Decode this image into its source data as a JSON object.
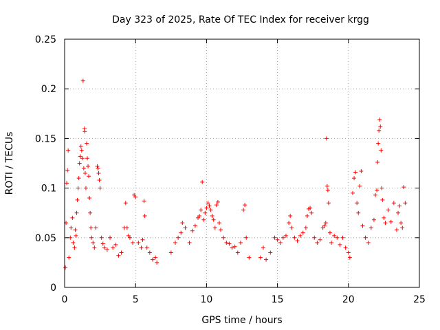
{
  "chart_data": {
    "type": "scatter",
    "title": "Day 323 of 2025, Rate Of TEC Index for receiver krgg",
    "xlabel": "GPS time / hours",
    "ylabel": "ROTI / TECUs",
    "xlim": [
      0,
      25
    ],
    "ylim": [
      0,
      0.25
    ],
    "x_ticks": [
      0,
      5,
      10,
      15,
      20,
      25
    ],
    "x_tick_labels": [
      "0",
      "5",
      "10",
      "15",
      "20",
      "25"
    ],
    "y_ticks": [
      0,
      0.05,
      0.1,
      0.15,
      0.2,
      0.25
    ],
    "y_tick_labels": [
      "0",
      "0.05",
      "0.1",
      "0.15",
      "0.2",
      "0.25"
    ],
    "grid": true,
    "marker": "+",
    "color": "#ff0000",
    "series": [
      {
        "points": [
          [
            0.05,
            0.02
          ],
          [
            0.1,
            0.065
          ],
          [
            0.15,
            0.105
          ],
          [
            0.2,
            0.118
          ],
          [
            0.25,
            0.138
          ],
          [
            0.3,
            0.03
          ],
          [
            0.4,
            0.05
          ],
          [
            0.45,
            0.06
          ],
          [
            0.55,
            0.07
          ],
          [
            0.6,
            0.045
          ],
          [
            0.7,
            0.04
          ],
          [
            0.75,
            0.058
          ],
          [
            0.8,
            0.052
          ],
          [
            0.85,
            0.075
          ],
          [
            0.9,
            0.088
          ],
          [
            0.95,
            0.1
          ],
          [
            1.0,
            0.11
          ],
          [
            1.05,
            0.125
          ],
          [
            1.1,
            0.132
          ],
          [
            1.15,
            0.142
          ],
          [
            1.2,
            0.138
          ],
          [
            1.25,
            0.13
          ],
          [
            1.3,
            0.208
          ],
          [
            1.35,
            0.12
          ],
          [
            1.4,
            0.16
          ],
          [
            1.42,
            0.157
          ],
          [
            1.45,
            0.115
          ],
          [
            1.5,
            0.1
          ],
          [
            1.55,
            0.145
          ],
          [
            1.6,
            0.13
          ],
          [
            1.65,
            0.122
          ],
          [
            1.7,
            0.112
          ],
          [
            1.75,
            0.09
          ],
          [
            1.8,
            0.075
          ],
          [
            1.85,
            0.06
          ],
          [
            1.9,
            0.05
          ],
          [
            2.0,
            0.045
          ],
          [
            2.1,
            0.04
          ],
          [
            2.2,
            0.06
          ],
          [
            2.3,
            0.122
          ],
          [
            2.35,
            0.12
          ],
          [
            2.4,
            0.115
          ],
          [
            2.45,
            0.108
          ],
          [
            2.5,
            0.1
          ],
          [
            2.6,
            0.05
          ],
          [
            2.7,
            0.044
          ],
          [
            2.8,
            0.04
          ],
          [
            3.0,
            0.038
          ],
          [
            3.2,
            0.05
          ],
          [
            3.4,
            0.04
          ],
          [
            3.6,
            0.043
          ],
          [
            3.8,
            0.032
          ],
          [
            4.0,
            0.035
          ],
          [
            4.2,
            0.06
          ],
          [
            4.3,
            0.085
          ],
          [
            4.4,
            0.06
          ],
          [
            4.5,
            0.052
          ],
          [
            4.6,
            0.05
          ],
          [
            4.8,
            0.045
          ],
          [
            4.9,
            0.093
          ],
          [
            5.0,
            0.091
          ],
          [
            5.2,
            0.045
          ],
          [
            5.4,
            0.04
          ],
          [
            5.5,
            0.048
          ],
          [
            5.6,
            0.087
          ],
          [
            5.65,
            0.072
          ],
          [
            5.8,
            0.04
          ],
          [
            6.0,
            0.035
          ],
          [
            6.2,
            0.028
          ],
          [
            6.4,
            0.03
          ],
          [
            6.5,
            0.025
          ],
          [
            7.5,
            0.035
          ],
          [
            7.8,
            0.045
          ],
          [
            8.0,
            0.05
          ],
          [
            8.2,
            0.055
          ],
          [
            8.3,
            0.065
          ],
          [
            8.5,
            0.06
          ],
          [
            8.8,
            0.045
          ],
          [
            9.0,
            0.057
          ],
          [
            9.2,
            0.062
          ],
          [
            9.4,
            0.07
          ],
          [
            9.5,
            0.072
          ],
          [
            9.6,
            0.078
          ],
          [
            9.7,
            0.106
          ],
          [
            9.8,
            0.068
          ],
          [
            9.9,
            0.075
          ],
          [
            10.0,
            0.08
          ],
          [
            10.1,
            0.085
          ],
          [
            10.2,
            0.082
          ],
          [
            10.3,
            0.078
          ],
          [
            10.4,
            0.072
          ],
          [
            10.5,
            0.068
          ],
          [
            10.6,
            0.06
          ],
          [
            10.7,
            0.083
          ],
          [
            10.8,
            0.086
          ],
          [
            10.9,
            0.065
          ],
          [
            11.0,
            0.058
          ],
          [
            11.2,
            0.05
          ],
          [
            11.4,
            0.045
          ],
          [
            11.6,
            0.044
          ],
          [
            11.8,
            0.04
          ],
          [
            12.0,
            0.041
          ],
          [
            12.2,
            0.035
          ],
          [
            12.4,
            0.045
          ],
          [
            12.6,
            0.078
          ],
          [
            12.7,
            0.083
          ],
          [
            12.8,
            0.05
          ],
          [
            13.0,
            0.03
          ],
          [
            13.8,
            0.03
          ],
          [
            14.0,
            0.04
          ],
          [
            14.2,
            0.028
          ],
          [
            14.5,
            0.035
          ],
          [
            14.8,
            0.05
          ],
          [
            15.0,
            0.048
          ],
          [
            15.2,
            0.045
          ],
          [
            15.4,
            0.05
          ],
          [
            15.6,
            0.052
          ],
          [
            15.8,
            0.065
          ],
          [
            15.9,
            0.072
          ],
          [
            16.0,
            0.06
          ],
          [
            16.2,
            0.05
          ],
          [
            16.4,
            0.047
          ],
          [
            16.6,
            0.052
          ],
          [
            16.8,
            0.055
          ],
          [
            17.0,
            0.06
          ],
          [
            17.1,
            0.072
          ],
          [
            17.2,
            0.079
          ],
          [
            17.3,
            0.08
          ],
          [
            17.4,
            0.075
          ],
          [
            17.6,
            0.05
          ],
          [
            17.8,
            0.045
          ],
          [
            18.0,
            0.048
          ],
          [
            18.2,
            0.06
          ],
          [
            18.3,
            0.062
          ],
          [
            18.4,
            0.065
          ],
          [
            18.45,
            0.15
          ],
          [
            18.5,
            0.102
          ],
          [
            18.55,
            0.098
          ],
          [
            18.6,
            0.085
          ],
          [
            18.7,
            0.055
          ],
          [
            18.8,
            0.045
          ],
          [
            19.0,
            0.052
          ],
          [
            19.2,
            0.05
          ],
          [
            19.4,
            0.043
          ],
          [
            19.6,
            0.05
          ],
          [
            19.8,
            0.04
          ],
          [
            20.0,
            0.035
          ],
          [
            20.1,
            0.03
          ],
          [
            20.3,
            0.095
          ],
          [
            20.4,
            0.11
          ],
          [
            20.5,
            0.116
          ],
          [
            20.6,
            0.085
          ],
          [
            20.7,
            0.075
          ],
          [
            20.8,
            0.102
          ],
          [
            20.9,
            0.117
          ],
          [
            21.0,
            0.062
          ],
          [
            21.2,
            0.05
          ],
          [
            21.4,
            0.045
          ],
          [
            21.6,
            0.06
          ],
          [
            21.8,
            0.068
          ],
          [
            21.9,
            0.093
          ],
          [
            22.0,
            0.098
          ],
          [
            22.05,
            0.126
          ],
          [
            22.1,
            0.145
          ],
          [
            22.15,
            0.158
          ],
          [
            22.2,
            0.169
          ],
          [
            22.25,
            0.162
          ],
          [
            22.3,
            0.138
          ],
          [
            22.35,
            0.1
          ],
          [
            22.4,
            0.088
          ],
          [
            22.5,
            0.07
          ],
          [
            22.6,
            0.065
          ],
          [
            22.8,
            0.078
          ],
          [
            23.0,
            0.066
          ],
          [
            23.2,
            0.085
          ],
          [
            23.4,
            0.058
          ],
          [
            23.5,
            0.075
          ],
          [
            23.6,
            0.082
          ],
          [
            23.7,
            0.065
          ],
          [
            23.8,
            0.06
          ],
          [
            23.9,
            0.101
          ],
          [
            24.0,
            0.085
          ]
        ]
      }
    ]
  }
}
